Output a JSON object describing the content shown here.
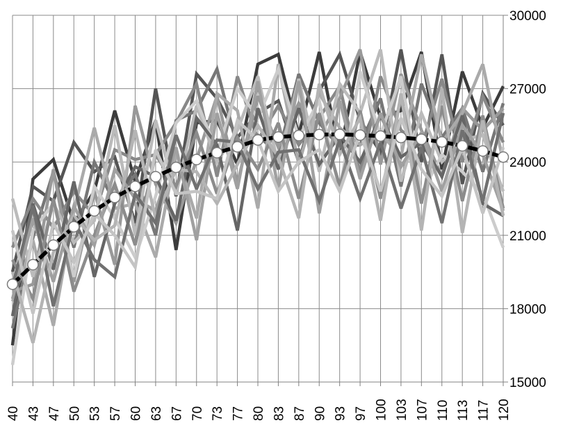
{
  "chart_data": {
    "type": "line",
    "title": "",
    "xlabel": "",
    "ylabel": "",
    "x": [
      "40",
      "43",
      "47",
      "50",
      "53",
      "57",
      "60",
      "63",
      "67",
      "70",
      "73",
      "77",
      "80",
      "83",
      "87",
      "90",
      "93",
      "97",
      "100",
      "103",
      "107",
      "110",
      "113",
      "117",
      "120"
    ],
    "ylim": [
      15000,
      30000
    ],
    "yticks": [
      "30000",
      "27000",
      "24000",
      "21000",
      "18000",
      "15000"
    ],
    "grid": true,
    "legend": "none",
    "y_axis_side": "right",
    "trend": {
      "values": [
        19000,
        19800,
        20600,
        21350,
        22000,
        22550,
        23000,
        23400,
        23780,
        24100,
        24380,
        24620,
        24900,
        25020,
        25080,
        25120,
        25130,
        25100,
        25060,
        25000,
        24930,
        24820,
        24660,
        24450,
        24200
      ],
      "color": "#000000",
      "marker_fill": "#ffffff"
    },
    "series": [
      {
        "color": "#3c3c3c",
        "values": [
          16500,
          23300,
          24100,
          21500,
          22800,
          26100,
          23200,
          25700,
          20400,
          25600,
          25700,
          23900,
          28000,
          28400,
          25100,
          28500,
          24300,
          28500,
          25800,
          26100,
          28500,
          23700,
          27700,
          25400,
          27100
        ]
      },
      {
        "color": "#555555",
        "values": [
          19500,
          23000,
          22400,
          24800,
          23600,
          24200,
          21500,
          27000,
          22600,
          27600,
          26600,
          25000,
          26000,
          26500,
          24000,
          26900,
          28400,
          25700,
          24400,
          28600,
          24000,
          28400,
          23100,
          26800,
          25500
        ]
      },
      {
        "color": "#777777",
        "values": [
          17200,
          20900,
          23600,
          20500,
          24000,
          22300,
          23500,
          21000,
          25700,
          26100,
          27800,
          24600,
          25100,
          24300,
          27600,
          25600,
          24600,
          24700,
          26600,
          23000,
          27200,
          25000,
          26200,
          23600,
          26400
        ]
      },
      {
        "color": "#888888",
        "values": [
          20500,
          22500,
          21300,
          22800,
          21800,
          24500,
          24100,
          24300,
          25600,
          27200,
          23400,
          27500,
          24900,
          26300,
          24700,
          25800,
          27100,
          23500,
          27500,
          25300,
          24600,
          27400,
          24000,
          26700,
          24800
        ]
      },
      {
        "color": "#999999",
        "values": [
          18700,
          19000,
          23700,
          19100,
          22800,
          19800,
          26300,
          23100,
          21500,
          24100,
          26700,
          23100,
          26700,
          24600,
          26400,
          25000,
          26600,
          28600,
          23900,
          27600,
          25300,
          23400,
          26200,
          25300,
          26200
        ]
      },
      {
        "color": "#aaaaaa",
        "values": [
          18300,
          20800,
          17300,
          22000,
          25400,
          22100,
          22300,
          20100,
          24400,
          21700,
          26800,
          26100,
          22100,
          28000,
          23900,
          26800,
          25400,
          24700,
          25200,
          24200,
          28400,
          24800,
          26000,
          28000,
          24000
        ]
      },
      {
        "color": "#bbbbbb",
        "values": [
          22500,
          19300,
          22300,
          20700,
          21600,
          25500,
          21000,
          25700,
          22700,
          26300,
          24000,
          25300,
          27500,
          23900,
          27400,
          23600,
          27200,
          26000,
          28600,
          23200,
          26000,
          24000,
          24900,
          25100,
          22800
        ]
      },
      {
        "color": "#cccccc",
        "values": [
          15700,
          21200,
          22300,
          19300,
          23000,
          21700,
          20100,
          22600,
          25600,
          26500,
          24400,
          27000,
          25800,
          27800,
          25000,
          26500,
          22800,
          27700,
          25100,
          27500,
          22700,
          24300,
          23600,
          22700,
          20500
        ]
      },
      {
        "color": "#666666",
        "values": [
          17700,
          22300,
          19600,
          23200,
          19300,
          22300,
          23800,
          23400,
          21600,
          25800,
          24700,
          21200,
          26200,
          23700,
          26200,
          23900,
          25100,
          24000,
          25900,
          24200,
          24800,
          23400,
          25900,
          22300,
          21800
        ]
      },
      {
        "color": "#8c8c8c",
        "values": [
          20000,
          18400,
          22500,
          18700,
          21000,
          23100,
          20600,
          24300,
          23000,
          25200,
          22700,
          25000,
          23700,
          25600,
          22500,
          26000,
          23000,
          26100,
          22500,
          26700,
          22300,
          26300,
          22400,
          25900,
          22100
        ]
      },
      {
        "color": "#a0a0a0",
        "values": [
          18400,
          21700,
          19100,
          22200,
          20600,
          23700,
          22500,
          22000,
          24600,
          20800,
          26000,
          22900,
          27300,
          22900,
          27300,
          21900,
          26500,
          23300,
          26000,
          23800,
          25200,
          22800,
          25500,
          24300,
          22000
        ]
      },
      {
        "color": "#b4b4b4",
        "values": [
          19500,
          16600,
          20300,
          21800,
          20800,
          21400,
          25300,
          21700,
          23700,
          23600,
          22300,
          23900,
          25500,
          24200,
          21700,
          27200,
          24300,
          25800,
          21600,
          26800,
          21200,
          27000,
          21100,
          25700,
          21800
        ]
      },
      {
        "color": "#707070",
        "values": [
          18900,
          22200,
          18100,
          21600,
          20000,
          19300,
          22700,
          21500,
          25100,
          22900,
          24900,
          24800,
          22900,
          24400,
          24500,
          22400,
          24900,
          22500,
          24800,
          22100,
          24600,
          21500,
          25300,
          22400,
          26000
        ]
      },
      {
        "color": "#c4c4c4",
        "values": [
          21200,
          17800,
          21500,
          19900,
          21900,
          21000,
          19700,
          24500,
          22700,
          22800,
          22500,
          25700,
          24900,
          22800,
          24000,
          24500,
          22800,
          25200,
          22800,
          25800,
          23700,
          22600,
          24600,
          21900,
          24600
        ]
      }
    ]
  }
}
